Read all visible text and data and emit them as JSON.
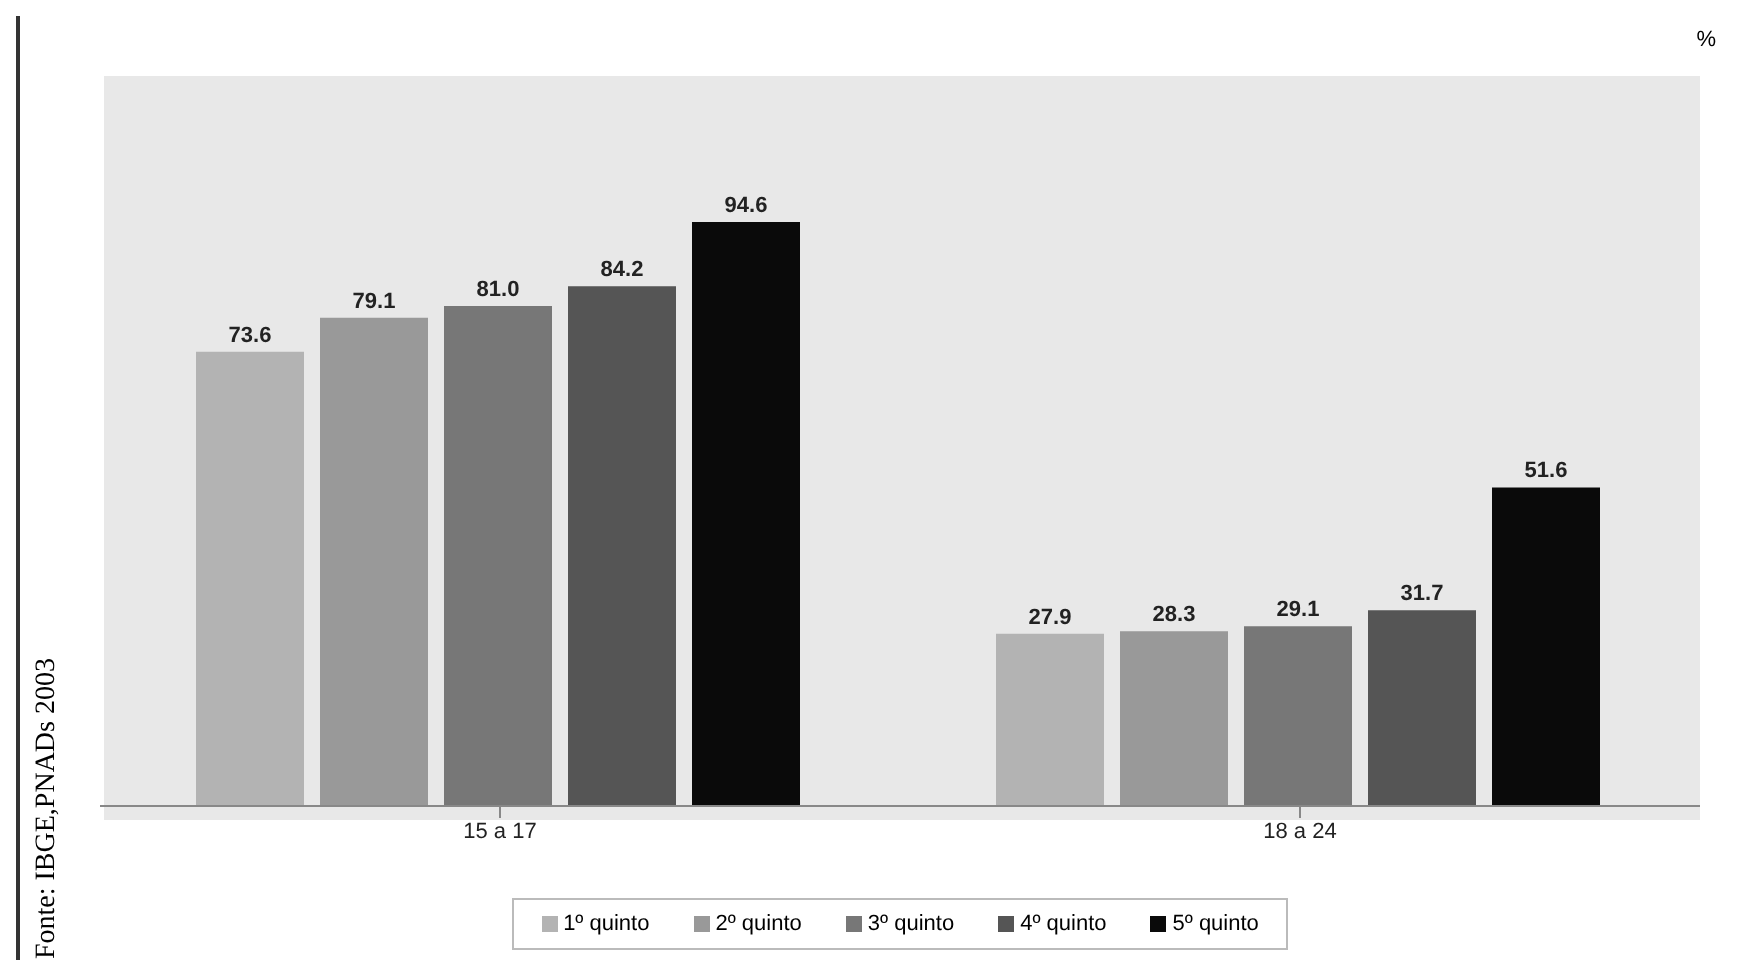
{
  "chart_data": {
    "type": "bar",
    "categories": [
      "15 a 17",
      "18 a 24"
    ],
    "series": [
      {
        "name": "1º quinto",
        "color": "#b3b3b3",
        "values": [
          73.6,
          27.9
        ],
        "value_labels": [
          "73.6",
          "27.9"
        ]
      },
      {
        "name": "2º quinto",
        "color": "#999999",
        "values": [
          79.1,
          28.3
        ],
        "value_labels": [
          "79.1",
          "28.3"
        ]
      },
      {
        "name": "3º quinto",
        "color": "#777777",
        "values": [
          81.0,
          29.1
        ],
        "value_labels": [
          "81.0",
          "29.1"
        ]
      },
      {
        "name": "4º quinto",
        "color": "#555555",
        "values": [
          84.2,
          31.7
        ],
        "value_labels": [
          "84.2",
          "31.7"
        ]
      },
      {
        "name": "5º quinto",
        "color": "#0a0a0a",
        "values": [
          94.6,
          51.6
        ],
        "value_labels": [
          "94.6",
          "51.6"
        ]
      }
    ],
    "legend": "bottom",
    "grid": false,
    "annotations": [
      "%",
      "Fonte: IBGE,PNADs 2003"
    ]
  }
}
